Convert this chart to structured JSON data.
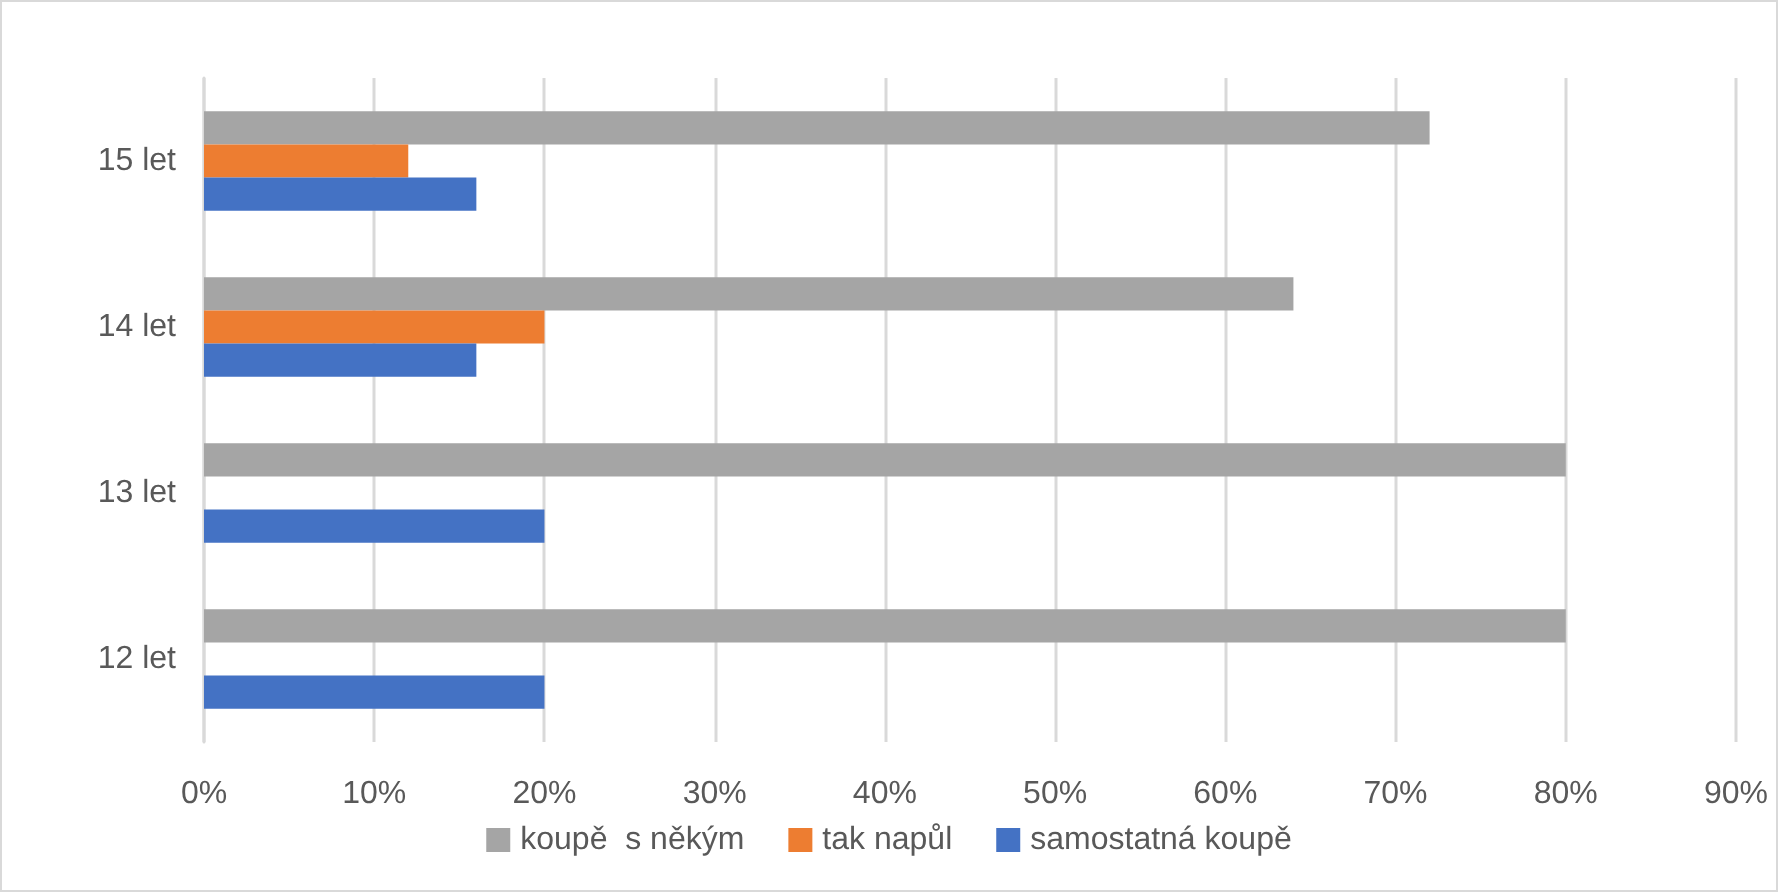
{
  "chart_data": {
    "type": "bar",
    "orientation": "horizontal",
    "categories": [
      "15 let",
      "14 let",
      "13 let",
      "12 let"
    ],
    "series": [
      {
        "name": "koupě  s někým",
        "color": "#a5a5a5",
        "values": [
          72,
          64,
          80,
          80
        ]
      },
      {
        "name": "tak napůl",
        "color": "#ed7d31",
        "values": [
          12,
          20,
          null,
          null
        ]
      },
      {
        "name": "samostatná koupě",
        "color": "#4472c4",
        "values": [
          16,
          16,
          20,
          20
        ]
      }
    ],
    "xlim": [
      0,
      90
    ],
    "xticks": [
      {
        "value": 0,
        "label": "0%"
      },
      {
        "value": 10,
        "label": "10%"
      },
      {
        "value": 20,
        "label": "20%"
      },
      {
        "value": 30,
        "label": "30%"
      },
      {
        "value": 40,
        "label": "40%"
      },
      {
        "value": 50,
        "label": "50%"
      },
      {
        "value": 60,
        "label": "60%"
      },
      {
        "value": 70,
        "label": "70%"
      },
      {
        "value": 80,
        "label": "80%"
      },
      {
        "value": 90,
        "label": "90%"
      }
    ],
    "grid": "x",
    "legend": "bottom"
  }
}
